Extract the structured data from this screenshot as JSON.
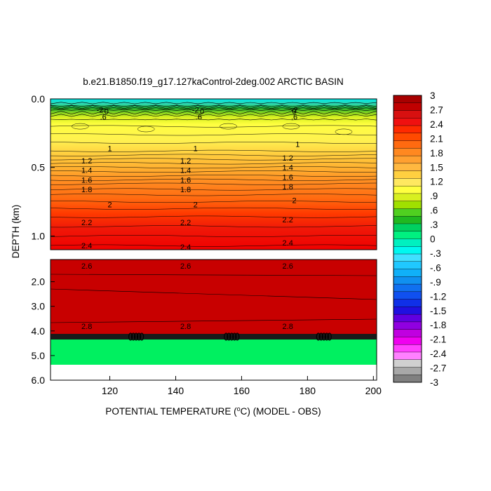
{
  "title": "b.e21.B1850.f19_g17.127kaControl-2deg.002 ARCTIC BASIN",
  "xlabel_prefix": "POTENTIAL TEMPERATURE (",
  "xlabel_degree": "o",
  "xlabel_suffix": "C) (MODEL - OBS)",
  "ylabel": "DEPTH (km)",
  "chart_data": {
    "type": "heatmap",
    "title": "b.e21.B1850.f19_g17.127kaControl-2deg.002 ARCTIC BASIN",
    "xlabel": "POTENTIAL TEMPERATURE (oC) (MODEL - OBS)",
    "ylabel": "DEPTH (km)",
    "xlim": [
      102,
      201
    ],
    "x_ticks": [
      "120",
      "140",
      "160",
      "180",
      "200"
    ],
    "upper_panel": {
      "ylim": [
        0.0,
        1.1
      ],
      "y_ticks": [
        "0.0",
        "0.5",
        "1.0"
      ]
    },
    "lower_panel": {
      "ylim": [
        1.1,
        6.0
      ],
      "y_ticks": [
        "2.0",
        "3.0",
        "4.0",
        "5.0",
        "6.0"
      ]
    },
    "contour_labels_upper": [
      {
        "text": "-2",
        "x": 117,
        "depth": 0.08
      },
      {
        "text": "-2",
        "x": 146,
        "depth": 0.08
      },
      {
        "text": "-2",
        "x": 176,
        "depth": 0.08
      },
      {
        "text": "0",
        "x": 119,
        "depth": 0.09
      },
      {
        "text": "0",
        "x": 148,
        "depth": 0.09
      },
      {
        "text": "0",
        "x": 176,
        "depth": 0.09
      },
      {
        "text": ".6",
        "x": 118,
        "depth": 0.13
      },
      {
        "text": ".6",
        "x": 147,
        "depth": 0.13
      },
      {
        "text": ".6",
        "x": 176,
        "depth": 0.13
      },
      {
        "text": "1",
        "x": 120,
        "depth": 0.36
      },
      {
        "text": "1",
        "x": 146,
        "depth": 0.36
      },
      {
        "text": "1",
        "x": 177,
        "depth": 0.33
      },
      {
        "text": "1.2",
        "x": 113,
        "depth": 0.45
      },
      {
        "text": "1.2",
        "x": 143,
        "depth": 0.45
      },
      {
        "text": "1.2",
        "x": 174,
        "depth": 0.43
      },
      {
        "text": "1.4",
        "x": 113,
        "depth": 0.52
      },
      {
        "text": "1.4",
        "x": 143,
        "depth": 0.52
      },
      {
        "text": "1.4",
        "x": 174,
        "depth": 0.5
      },
      {
        "text": "1.6",
        "x": 113,
        "depth": 0.59
      },
      {
        "text": "1.6",
        "x": 143,
        "depth": 0.59
      },
      {
        "text": "1.6",
        "x": 174,
        "depth": 0.57
      },
      {
        "text": "1.8",
        "x": 113,
        "depth": 0.66
      },
      {
        "text": "1.8",
        "x": 143,
        "depth": 0.66
      },
      {
        "text": "1.8",
        "x": 174,
        "depth": 0.64
      },
      {
        "text": "2",
        "x": 120,
        "depth": 0.77
      },
      {
        "text": "2",
        "x": 146,
        "depth": 0.77
      },
      {
        "text": "2",
        "x": 176,
        "depth": 0.74
      },
      {
        "text": "2.2",
        "x": 113,
        "depth": 0.9
      },
      {
        "text": "2.2",
        "x": 143,
        "depth": 0.9
      },
      {
        "text": "2.2",
        "x": 174,
        "depth": 0.88
      },
      {
        "text": "2.4",
        "x": 113,
        "depth": 1.07
      },
      {
        "text": "2.4",
        "x": 143,
        "depth": 1.08
      },
      {
        "text": "2.4",
        "x": 174,
        "depth": 1.05
      }
    ],
    "contour_labels_lower": [
      {
        "text": "2.6",
        "x": 113,
        "depth": 1.35
      },
      {
        "text": "2.6",
        "x": 143,
        "depth": 1.35
      },
      {
        "text": "2.6",
        "x": 174,
        "depth": 1.35
      },
      {
        "text": "2.8",
        "x": 113,
        "depth": 3.8
      },
      {
        "text": "2.8",
        "x": 143,
        "depth": 3.8
      },
      {
        "text": "2.8",
        "x": 174,
        "depth": 3.8
      }
    ],
    "colorbar": {
      "labels": [
        "3",
        "2.7",
        "2.4",
        "2.1",
        "1.8",
        "1.5",
        "1.2",
        ".9",
        ".6",
        ".3",
        "0",
        "-.3",
        "-.6",
        "-.9",
        "-1.2",
        "-1.5",
        "-1.8",
        "-2.1",
        "-2.4",
        "-2.7",
        "-3"
      ],
      "colors": [
        "#a80000",
        "#c00000",
        "#d81010",
        "#f01010",
        "#ff2a00",
        "#ff4a00",
        "#ff6a10",
        "#ff8820",
        "#ffa030",
        "#ffb840",
        "#ffd040",
        "#ffe860",
        "#ffff40",
        "#d8f020",
        "#a0e000",
        "#50d020",
        "#20b820",
        "#00d060",
        "#00f080",
        "#00f0c0",
        "#00f8f0",
        "#40e0ff",
        "#20c8ff",
        "#10b0f8",
        "#1090f0",
        "#1070f0",
        "#1050f0",
        "#1030e8",
        "#2010e0",
        "#6000e0",
        "#9000e0",
        "#c000e0",
        "#f000f0",
        "#ff40ff",
        "#ff80ff",
        "#d0d0d0",
        "#a8a8a8",
        "#808080"
      ]
    },
    "fill_colors": {
      "surface_cyan": "#00f0f0",
      "band_yellow": "#ffee40",
      "band_orange": "#ffa030",
      "deep_red": "#f00000",
      "darkest_red": "#c80000",
      "bottom_green": "#00f060",
      "land_white": "#ffffff"
    }
  }
}
